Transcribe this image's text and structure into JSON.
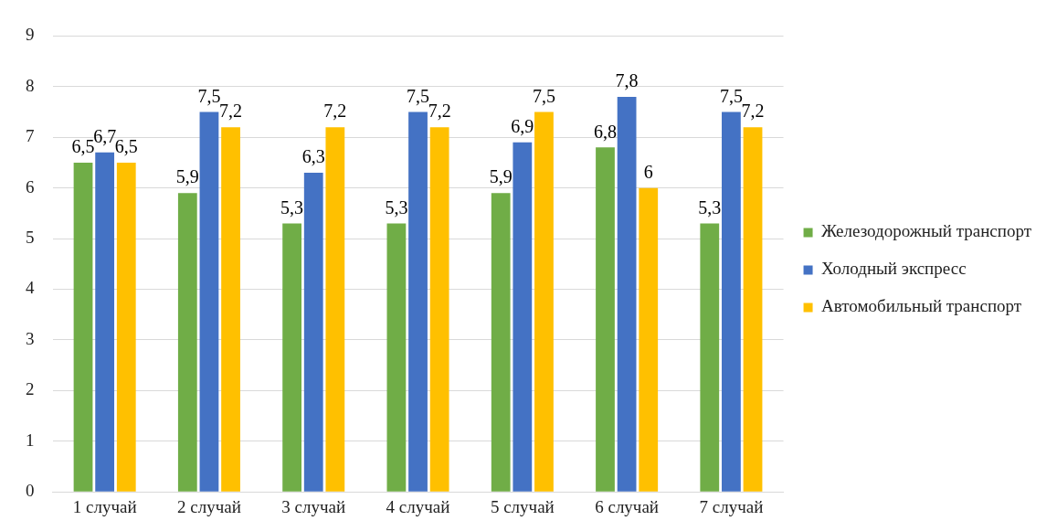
{
  "chart_data": {
    "type": "bar",
    "categories": [
      "1 случай",
      "2 случай",
      "3 случай",
      "4 случай",
      "5 случай",
      "6 случай",
      "7 случай"
    ],
    "series": [
      {
        "name": "Железодорожный транспорт",
        "color": "#70ad47",
        "values": [
          6.5,
          5.9,
          5.3,
          5.3,
          5.9,
          6.8,
          5.3
        ],
        "value_labels": [
          "6,5",
          "5,9",
          "5,3",
          "5,3",
          "5,9",
          "6,8",
          "5,3"
        ]
      },
      {
        "name": "Холодный экспресс",
        "color": "#4472c4",
        "values": [
          6.7,
          7.5,
          6.3,
          7.5,
          6.9,
          7.8,
          7.5
        ],
        "value_labels": [
          "6,7",
          "7,5",
          "6,3",
          "7,5",
          "6,9",
          "7,8",
          "7,5"
        ]
      },
      {
        "name": "Автомобильный транспорт",
        "color": "#ffc000",
        "values": [
          6.5,
          7.2,
          7.2,
          7.2,
          7.5,
          6,
          7.2
        ],
        "value_labels": [
          "6,5",
          "7,2",
          "7,2",
          "7,2",
          "7,5",
          "6",
          "7,2"
        ]
      }
    ],
    "ylim": [
      0,
      9
    ],
    "yticks": [
      0,
      1,
      2,
      3,
      4,
      5,
      6,
      7,
      8,
      9
    ],
    "grid": "y",
    "legend": "right"
  }
}
